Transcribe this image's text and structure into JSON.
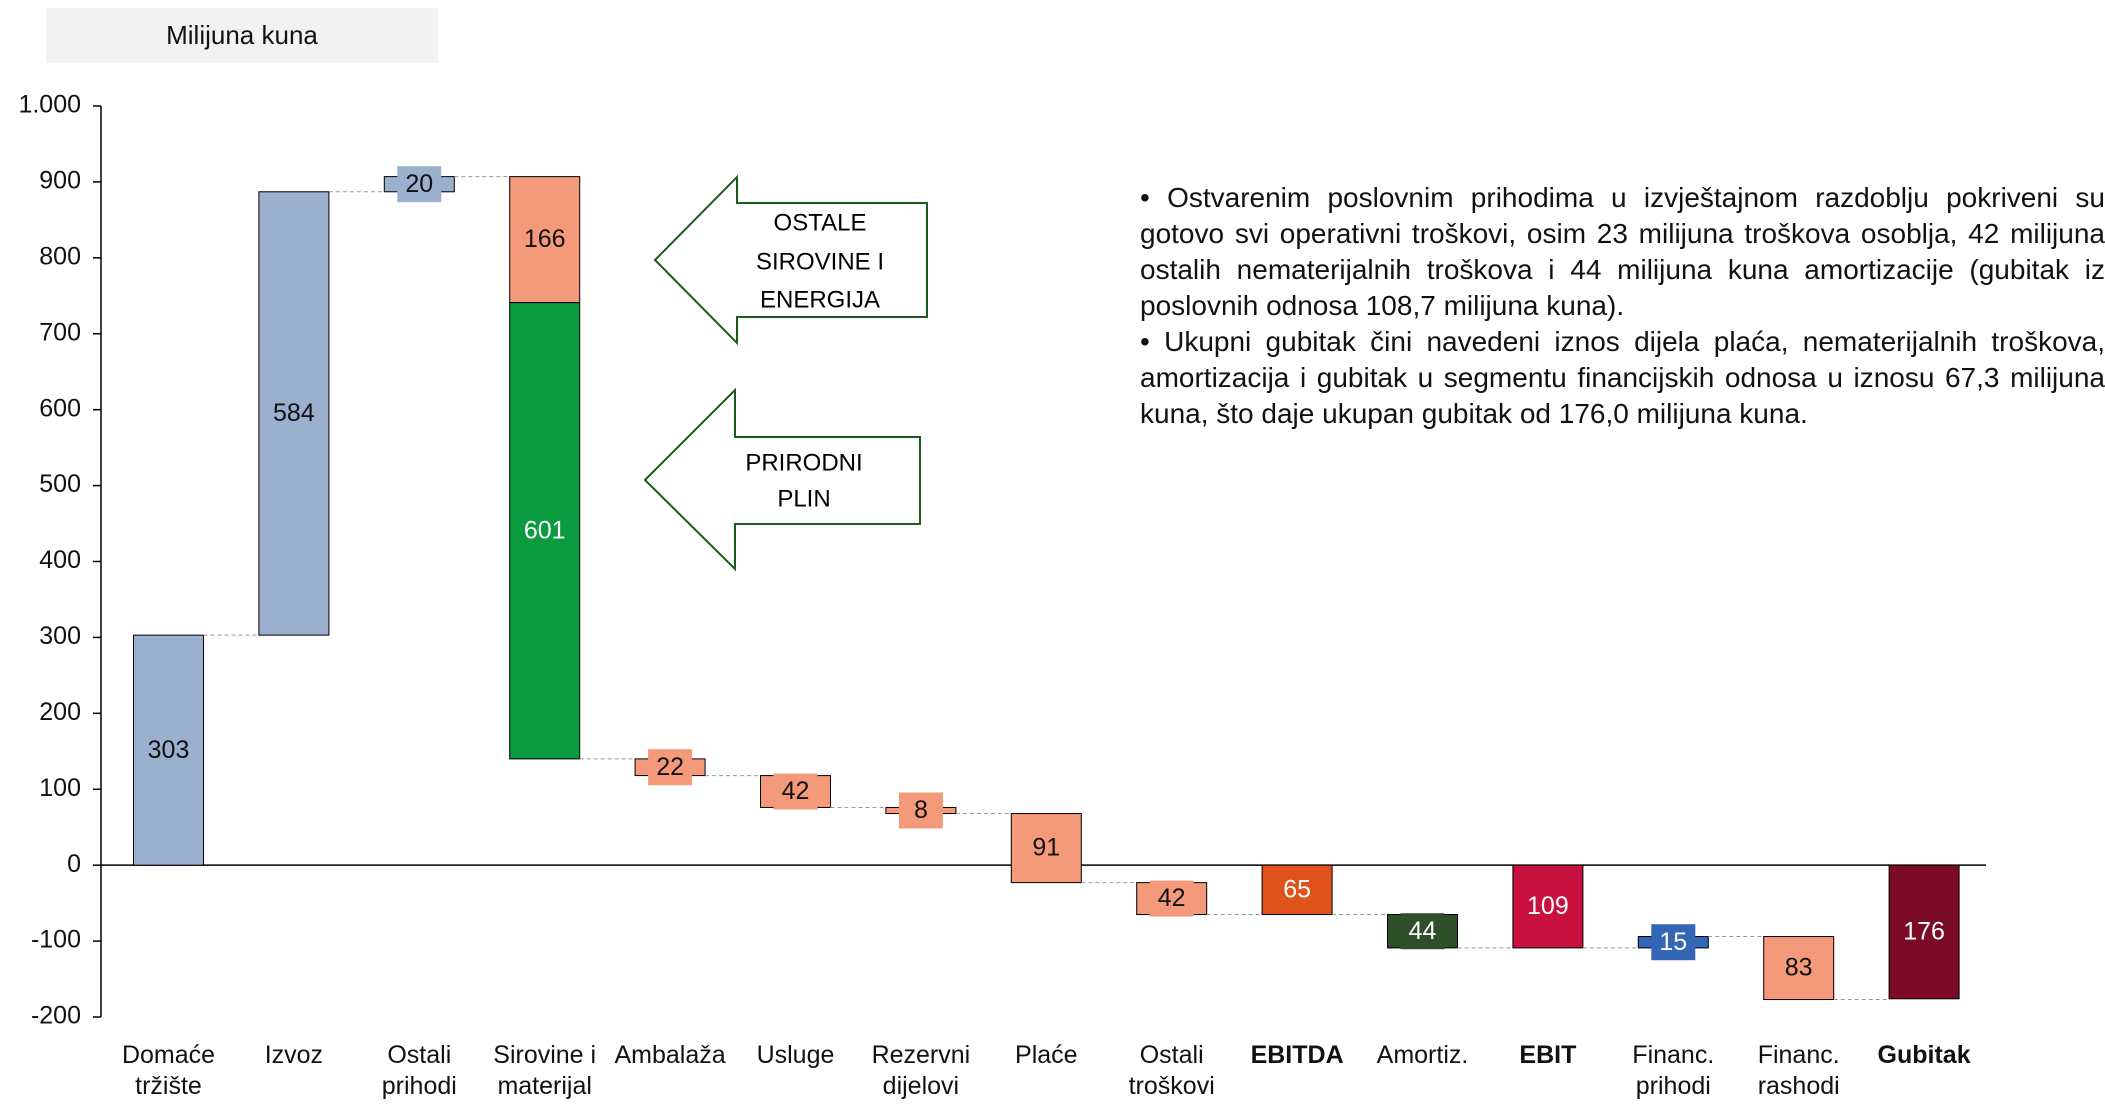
{
  "chart_data": {
    "type": "waterfall",
    "y_label": "Milijuna kuna",
    "categories": [
      "Domaće tržište",
      "Izvoz",
      "Ostali prihodi",
      "Sirovine i materijal",
      null,
      "Ambalaža",
      "Usluge",
      "Rezervni dijelovi",
      "Plaće",
      "Ostali troškovi",
      "EBITDA",
      "Amortiz.",
      "EBIT",
      "Financ. prihodi",
      "Financ. rashodi",
      "Gubitak"
    ],
    "values": [
      303,
      584,
      20,
      -166,
      -601,
      -22,
      -42,
      -8,
      -91,
      -42,
      -65,
      -44,
      -109,
      15,
      -83,
      -176
    ],
    "value_labels": [
      "303",
      "584",
      "20",
      "166",
      "601",
      "22",
      "42",
      "8",
      "91",
      "42",
      "65",
      "44",
      "109",
      "15",
      "83",
      "176"
    ],
    "kinds": [
      "step",
      "step",
      "step",
      "step",
      "step",
      "step",
      "step",
      "step",
      "step",
      "step",
      "total",
      "step",
      "total",
      "step",
      "step",
      "total"
    ],
    "colors": [
      "#9bafcf",
      "#9bafcf",
      "#9bafcf",
      "#f4997a",
      "#0a9a3f",
      "#f4997a",
      "#f4997a",
      "#f4997a",
      "#f4997a",
      "#f4997a",
      "#e0521c",
      "#2f4f2a",
      "#c8113f",
      "#3466b6",
      "#f4997a",
      "#7a0a26"
    ],
    "ylim": [
      -200,
      1000
    ],
    "yticks": [
      -200,
      -100,
      0,
      100,
      200,
      300,
      400,
      500,
      600,
      700,
      800,
      900,
      {
        "value": 1000,
        "label": "1.000"
      }
    ],
    "annotations": [
      {
        "lines": [
          "OSTALE",
          "SIROVINE I",
          "ENERGIJA"
        ]
      },
      {
        "lines": [
          "PRIRODNI",
          "PLIN"
        ]
      }
    ],
    "notes": [
      "• Ostvarenim poslovnim prihodima u izvještajnom razdoblju pokriveni su gotovo svi operativni troškovi, osim 23 milijuna troškova osoblja, 42 milijuna ostalih nematerijalnih troškova i 44 milijuna kuna amortizacije (gubitak iz poslovnih odnosa 108,7 milijuna kuna).",
      "• Ukupni gubitak čini navedeni iznos dijela plaća, nematerijalnih troškova, amortizacija i gubitak u segmentu financijskih odnosa u iznosu 67,3 milijuna kuna, što daje ukupan gubitak od 176,0 milijuna kuna."
    ]
  }
}
